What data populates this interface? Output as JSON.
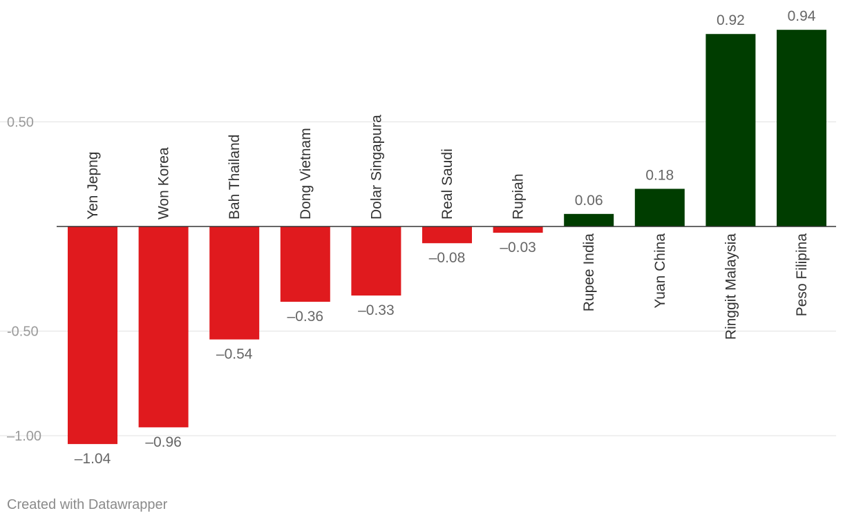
{
  "chart_data": {
    "type": "bar",
    "categories": [
      "Yen Jepng",
      "Won Korea",
      "Bah Thailand",
      "Dong Vietnam",
      "Dolar Singapura",
      "Real Saudi",
      "Rupiah",
      "Rupee India",
      "Yuan China",
      "Ringgit Malaysia",
      "Peso Filipina"
    ],
    "values": [
      -1.04,
      -0.96,
      -0.54,
      -0.36,
      -0.33,
      -0.08,
      -0.03,
      0.06,
      0.18,
      0.92,
      0.94
    ],
    "value_labels": [
      "–1.04",
      "–0.96",
      "–0.54",
      "–0.36",
      "–0.33",
      "–0.08",
      "–0.03",
      "0.06",
      "0.18",
      "0.92",
      "0.94"
    ],
    "yticks": [
      0.5,
      -0.5,
      -1.0
    ],
    "ytick_labels": [
      "0.50",
      "-0.50",
      "–1.00"
    ],
    "ylim": [
      -1.15,
      1.0
    ],
    "grid": true,
    "colors": {
      "negative": "#e01a1e",
      "positive": "#003d00",
      "grid": "#e2e2e2",
      "baseline": "#333333",
      "tick_text": "#9a9a9a",
      "value_text": "#666666",
      "category_text": "#333333"
    }
  },
  "footer": {
    "credit": "Created with Datawrapper"
  }
}
